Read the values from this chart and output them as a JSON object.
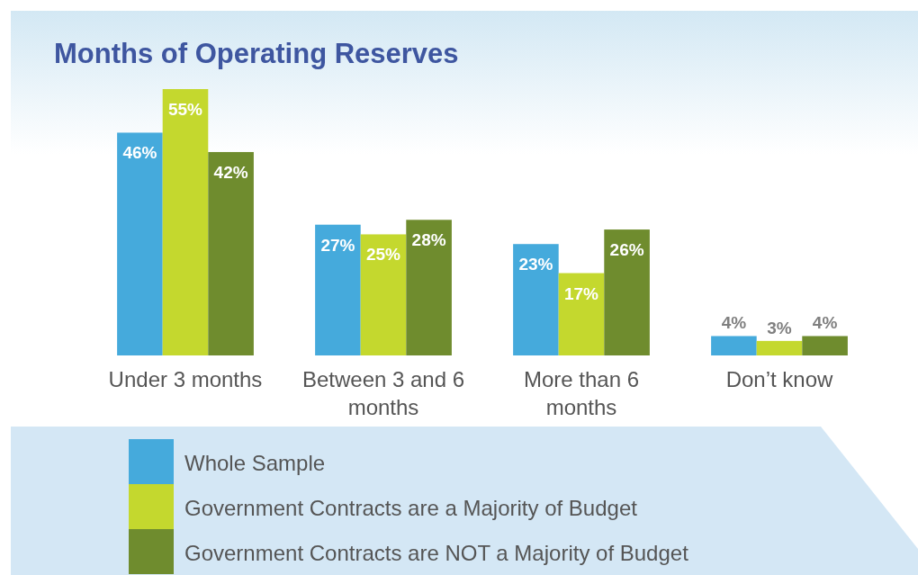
{
  "chart_data": {
    "type": "bar",
    "title": "Months of Operating Reserves",
    "categories": [
      "Under 3 months",
      "Between 3 and 6 months",
      "More than 6 months",
      "Don’t know"
    ],
    "series": [
      {
        "name": "Whole Sample",
        "color": "#45aadc",
        "values": [
          46,
          27,
          23,
          4
        ],
        "value_labels": [
          "46%",
          "27%",
          "23%",
          "4%"
        ]
      },
      {
        "name": "Government Contracts are a Majority of Budget",
        "color": "#c4d82e",
        "values": [
          55,
          25,
          17,
          3
        ],
        "value_labels": [
          "55%",
          "25%",
          "17%",
          "3%"
        ]
      },
      {
        "name": "Government Contracts are NOT a Majority of Budget",
        "color": "#6f8c2e",
        "values": [
          42,
          28,
          26,
          4
        ],
        "value_labels": [
          "42%",
          "28%",
          "26%",
          "4%"
        ]
      }
    ],
    "legend": "bottom"
  }
}
